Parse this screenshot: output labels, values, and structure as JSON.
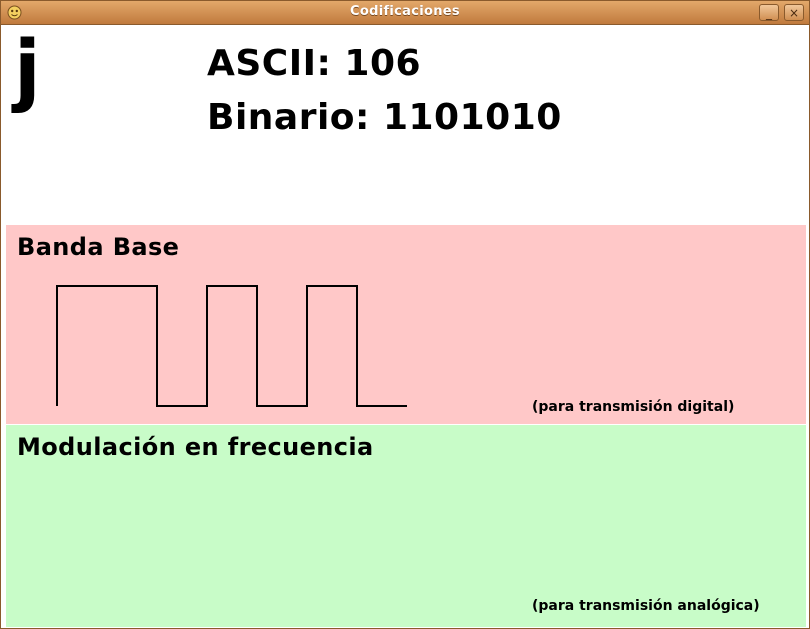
{
  "window": {
    "title": "Codificaciones",
    "minimize_glyph": "_",
    "close_glyph": "×"
  },
  "character": {
    "letter": "j",
    "ascii_text": "ASCII: 106",
    "binary_text": "Binario: 1101010",
    "bits": [
      1,
      1,
      0,
      1,
      0,
      1,
      0
    ]
  },
  "baseband": {
    "title": "Banda Base",
    "note": "(para transmisión digital)",
    "color": "#ffc8c8"
  },
  "fm": {
    "title": "Modulación en frecuencia",
    "note": "(para transmisión analógica)",
    "color": "#c8fcc8"
  },
  "titlebar_color": "#d08f52"
}
